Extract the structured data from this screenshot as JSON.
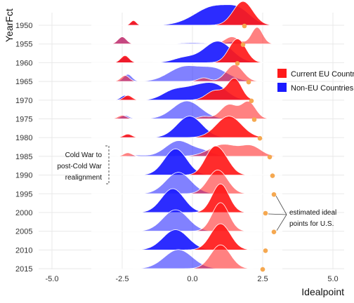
{
  "chart_data": {
    "type": "ridgeline",
    "title": "",
    "xlabel": "Idealpoint",
    "ylabel": "YearFct",
    "xlim": [
      -5.0,
      5.0
    ],
    "x_ticks": [
      "-5.0",
      "-2.5",
      "0.0",
      "2.5",
      "5.0"
    ],
    "rows": [
      "1950",
      "1955",
      "1960",
      "1965",
      "1970",
      "1975",
      "1980",
      "1985",
      "1990",
      "1995",
      "2000",
      "2005",
      "2010",
      "2015"
    ],
    "legend": {
      "position": "right",
      "entries": [
        {
          "label": "Current EU Countries",
          "color": "#ff1a1a"
        },
        {
          "label": "Non-EU Countries",
          "color": "#1a1aff"
        }
      ]
    },
    "series": [
      {
        "name": "Current EU Countries",
        "color": "#ff1a1a",
        "peaks": [
          [
            [
              -2.1,
              0.1,
              0.2
            ],
            [
              1.8,
              0.35,
              1.0
            ]
          ],
          [
            [
              -2.5,
              0.15,
              0.3
            ],
            [
              1.4,
              0.25,
              0.3
            ],
            [
              2.3,
              0.2,
              0.7
            ]
          ],
          [
            [
              -2.4,
              0.15,
              0.3
            ],
            [
              1.6,
              0.3,
              1.0
            ]
          ],
          [
            [
              -2.4,
              0.15,
              0.25
            ],
            [
              0.4,
              0.2,
              0.15
            ],
            [
              1.5,
              0.3,
              0.7
            ]
          ],
          [
            [
              -2.3,
              0.15,
              0.2
            ],
            [
              0.8,
              0.3,
              0.4
            ],
            [
              1.5,
              0.25,
              0.9
            ]
          ],
          [
            [
              -2.5,
              0.15,
              0.15
            ],
            [
              0.4,
              0.2,
              0.1
            ],
            [
              1.3,
              0.3,
              0.6
            ],
            [
              2.0,
              0.25,
              0.7
            ]
          ],
          [
            [
              -2.3,
              0.15,
              0.15
            ],
            [
              1.3,
              0.45,
              0.9
            ]
          ],
          [
            [
              -2.3,
              0.15,
              0.15
            ],
            [
              1.1,
              0.5,
              0.5
            ],
            [
              2.1,
              0.35,
              0.4
            ]
          ],
          [
            [
              0.7,
              0.3,
              0.9
            ],
            [
              1.1,
              0.3,
              0.6
            ]
          ],
          [
            [
              0.9,
              0.35,
              1.0
            ]
          ],
          [
            [
              1.0,
              0.3,
              1.2
            ]
          ],
          [
            [
              1.0,
              0.3,
              1.2
            ]
          ],
          [
            [
              1.0,
              0.35,
              1.1
            ]
          ],
          [
            [
              1.0,
              0.35,
              1.0
            ]
          ]
        ]
      },
      {
        "name": "Non-EU Countries",
        "color": "#1a1aff",
        "peaks": [
          [
            [
              -2.1,
              0.12,
              0.15
            ],
            [
              0.8,
              0.7,
              0.8
            ],
            [
              1.7,
              0.4,
              0.4
            ]
          ],
          [
            [
              -2.5,
              0.15,
              0.3
            ],
            [
              0.0,
              0.5,
              0.05
            ],
            [
              1.5,
              0.3,
              0.1
            ]
          ],
          [
            [
              -2.4,
              0.15,
              0.25
            ],
            [
              -0.3,
              0.4,
              0.2
            ],
            [
              0.9,
              0.5,
              0.9
            ]
          ],
          [
            [
              -2.3,
              0.15,
              0.3
            ],
            [
              -0.3,
              0.55,
              0.6
            ],
            [
              0.8,
              0.5,
              0.5
            ]
          ],
          [
            [
              -2.4,
              0.15,
              0.2
            ],
            [
              -0.7,
              0.4,
              0.35
            ],
            [
              0.2,
              0.5,
              0.55
            ],
            [
              0.9,
              0.4,
              0.45
            ]
          ],
          [
            [
              -2.4,
              0.15,
              0.15
            ],
            [
              -0.2,
              0.5,
              0.75
            ]
          ],
          [
            [
              -2.3,
              0.15,
              0.1
            ],
            [
              -0.1,
              0.45,
              0.9
            ]
          ],
          [
            [
              -2.0,
              0.3,
              0.05
            ],
            [
              -0.5,
              0.45,
              0.65
            ],
            [
              0.4,
              0.35,
              0.2
            ]
          ],
          [
            [
              -0.6,
              0.4,
              1.1
            ]
          ],
          [
            [
              -0.5,
              0.45,
              0.9
            ]
          ],
          [
            [
              -0.7,
              0.4,
              1.0
            ]
          ],
          [
            [
              -0.6,
              0.45,
              0.9
            ]
          ],
          [
            [
              -0.6,
              0.45,
              0.85
            ]
          ],
          [
            [
              -0.5,
              0.5,
              0.8
            ]
          ]
        ]
      }
    ],
    "us_points": {
      "name": "U.S.",
      "color": "#f5a850",
      "values": [
        1.85,
        1.8,
        1.6,
        2.0,
        2.1,
        2.2,
        2.4,
        2.75,
        2.85,
        2.9,
        2.6,
        2.9,
        2.6,
        2.5
      ]
    },
    "annotations": [
      {
        "lines": [
          "Cold War to",
          "post-Cold War",
          "realignment"
        ]
      },
      {
        "lines": [
          "estimated ideal",
          "points for U.S."
        ]
      }
    ]
  }
}
